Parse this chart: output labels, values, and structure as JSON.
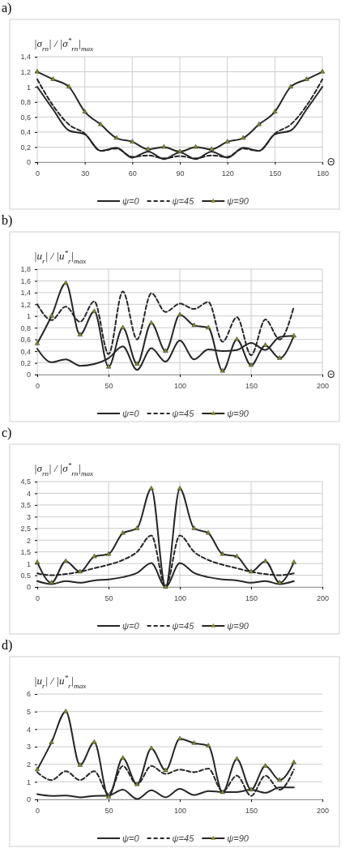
{
  "chart_data": [
    {
      "type": "line",
      "title": "a)",
      "xlabel": "Θ",
      "ylabel": "|σ$_{rn}$| / |σ$^{*}$$_{rn}$|$_{max}$",
      "x": [
        0,
        10,
        20,
        30,
        40,
        50,
        60,
        70,
        80,
        90,
        100,
        110,
        120,
        130,
        140,
        150,
        160,
        170,
        180
      ],
      "xlim": [
        0,
        180
      ],
      "xticks": [
        0,
        30,
        60,
        90,
        120,
        150,
        180
      ],
      "ylim": [
        0,
        1.4
      ],
      "yticks": [
        0,
        {
          "value": 0.2,
          "label": "0,2"
        },
        {
          "value": 0.4,
          "label": "0,4"
        },
        {
          "value": 0.6,
          "label": "0,6"
        },
        {
          "value": 0.8,
          "label": "0,8"
        },
        1,
        {
          "value": 1.2,
          "label": "1,2"
        },
        {
          "value": 1.4,
          "label": "1,4"
        }
      ],
      "grid": true,
      "legend": "bottom",
      "series": [
        {
          "name": "ψ=0",
          "color": "#262626",
          "line_style": "solid",
          "marker": "none",
          "values": [
            1.0,
            0.7,
            0.42,
            0.37,
            0.15,
            0.19,
            0.06,
            0.14,
            0.04,
            0.13,
            0.04,
            0.14,
            0.06,
            0.19,
            0.15,
            0.37,
            0.42,
            0.7,
            1.0
          ]
        },
        {
          "name": "ψ=45",
          "color": "#262626",
          "line_style": "dashed",
          "marker": "none",
          "values": [
            1.1,
            0.75,
            0.5,
            0.38,
            0.15,
            0.18,
            0.07,
            0.09,
            0.05,
            0.08,
            0.05,
            0.09,
            0.07,
            0.18,
            0.15,
            0.38,
            0.5,
            0.75,
            1.1
          ]
        },
        {
          "name": "ψ=90",
          "color": "#262626",
          "line_style": "solid",
          "marker": "triangle",
          "values": [
            1.2,
            1.1,
            1.0,
            0.67,
            0.5,
            0.32,
            0.27,
            0.17,
            0.2,
            0.14,
            0.2,
            0.17,
            0.27,
            0.32,
            0.5,
            0.67,
            1.0,
            1.1,
            1.2
          ]
        }
      ]
    },
    {
      "type": "line",
      "title": "b)",
      "xlabel": "Θ",
      "ylabel": "|u$_{r}$| / |u$^{*}$$_{r}$|$_{max}$",
      "x": [
        0,
        10,
        20,
        30,
        40,
        50,
        60,
        70,
        80,
        90,
        100,
        110,
        120,
        130,
        140,
        150,
        160,
        170,
        180
      ],
      "xlim": [
        0,
        200
      ],
      "xticks": [
        0,
        50,
        100,
        150,
        200
      ],
      "ylim": [
        0,
        1.8
      ],
      "yticks": [
        0,
        {
          "value": 0.2,
          "label": "0,2"
        },
        {
          "value": 0.4,
          "label": "0,4"
        },
        {
          "value": 0.6,
          "label": "0,6"
        },
        {
          "value": 0.8,
          "label": "0,8"
        },
        1,
        {
          "value": 1.2,
          "label": "1,2"
        },
        {
          "value": 1.4,
          "label": "1,4"
        },
        {
          "value": 1.6,
          "label": "1,6"
        },
        {
          "value": 1.8,
          "label": "1,8"
        }
      ],
      "grid": true,
      "legend": "bottom",
      "series": [
        {
          "name": "ψ=0",
          "color": "#262626",
          "line_style": "solid",
          "marker": "none",
          "values": [
            0.44,
            0.21,
            0.26,
            0.15,
            0.18,
            0.28,
            0.48,
            0.08,
            0.45,
            0.22,
            0.58,
            0.26,
            0.43,
            0.4,
            0.42,
            0.54,
            0.42,
            0.64,
            0.66
          ]
        },
        {
          "name": "ψ=45",
          "color": "#262626",
          "line_style": "dashed",
          "marker": "none",
          "values": [
            1.2,
            0.93,
            1.16,
            0.9,
            1.25,
            0.35,
            1.42,
            0.6,
            1.39,
            1.07,
            1.21,
            1.12,
            1.24,
            0.56,
            0.98,
            0.33,
            0.94,
            0.6,
            1.16
          ]
        },
        {
          "name": "ψ=90",
          "color": "#262626",
          "line_style": "solid",
          "marker": "triangle",
          "values": [
            0.53,
            1.0,
            1.56,
            0.68,
            1.08,
            0.13,
            0.8,
            0.18,
            0.88,
            0.4,
            1.02,
            0.84,
            0.8,
            0.06,
            0.6,
            0.16,
            0.5,
            0.28,
            0.66
          ]
        }
      ]
    },
    {
      "type": "line",
      "title": "c)",
      "ylabel": "|σ$_{rn}$| / |σ$^{*}$$_{rn}$|$_{max}$",
      "x": [
        0,
        10,
        20,
        30,
        40,
        50,
        60,
        70,
        80,
        90,
        100,
        110,
        120,
        130,
        140,
        150,
        160,
        170,
        180
      ],
      "xlim": [
        0,
        200
      ],
      "xticks": [
        0,
        50,
        100,
        150,
        200
      ],
      "ylim": [
        0,
        4.5
      ],
      "yticks": [
        0,
        {
          "value": 0.5,
          "label": "0,5"
        },
        1,
        {
          "value": 1.5,
          "label": "1,5"
        },
        2,
        {
          "value": 2.5,
          "label": "2,5"
        },
        3,
        {
          "value": 3.5,
          "label": "3,5"
        },
        4,
        {
          "value": 4.5,
          "label": "4,5"
        }
      ],
      "grid": true,
      "legend": "bottom",
      "series": [
        {
          "name": "ψ=0",
          "color": "#262626",
          "line_style": "solid",
          "marker": "none",
          "values": [
            0.25,
            0.12,
            0.25,
            0.18,
            0.28,
            0.32,
            0.42,
            0.6,
            1.02,
            0,
            1.02,
            0.6,
            0.42,
            0.32,
            0.28,
            0.18,
            0.25,
            0.12,
            0.25
          ]
        },
        {
          "name": "ψ=45",
          "color": "#262626",
          "line_style": "dashed",
          "marker": "none",
          "values": [
            0.58,
            0.5,
            0.55,
            0.65,
            0.8,
            0.95,
            1.15,
            1.5,
            2.2,
            0,
            2.2,
            1.5,
            1.15,
            0.95,
            0.8,
            0.65,
            0.55,
            0.5,
            0.58
          ]
        },
        {
          "name": "ψ=90",
          "color": "#262626",
          "line_style": "solid",
          "marker": "triangle",
          "values": [
            1.05,
            0.18,
            1.1,
            0.65,
            1.3,
            1.4,
            2.3,
            2.5,
            4.2,
            0,
            4.2,
            2.5,
            2.3,
            1.4,
            1.3,
            0.65,
            1.1,
            0.18,
            1.05
          ]
        }
      ]
    },
    {
      "type": "line",
      "title": "d)",
      "ylabel": "|u$_{r}$| / |u$^{*}$$_{r}$|$_{max}$",
      "x": [
        0,
        10,
        20,
        30,
        40,
        50,
        60,
        70,
        80,
        90,
        100,
        110,
        120,
        130,
        140,
        150,
        160,
        170,
        180
      ],
      "xlim": [
        0,
        200
      ],
      "xticks": [
        0,
        50,
        100,
        150,
        200
      ],
      "ylim": [
        0,
        6
      ],
      "yticks": [
        0,
        1,
        2,
        3,
        4,
        5,
        6
      ],
      "grid": "y",
      "legend": "bottom",
      "series": [
        {
          "name": "ψ=0",
          "color": "#262626",
          "line_style": "solid",
          "marker": "none",
          "values": [
            0.3,
            0.2,
            0.22,
            0.12,
            0.2,
            0.22,
            0.55,
            0.02,
            0.52,
            0.12,
            0.6,
            0.25,
            0.47,
            0.42,
            0.42,
            0.55,
            0.38,
            0.68,
            0.68
          ]
        },
        {
          "name": "ψ=45",
          "color": "#262626",
          "line_style": "dashed",
          "marker": "none",
          "values": [
            1.55,
            1.1,
            1.6,
            1.1,
            1.6,
            0.3,
            1.9,
            0.85,
            1.9,
            1.45,
            1.7,
            1.55,
            1.75,
            0.45,
            1.35,
            0.2,
            1.35,
            0.55,
            1.7
          ]
        },
        {
          "name": "ψ=90",
          "color": "#262626",
          "line_style": "solid",
          "marker": "triangle",
          "values": [
            1.7,
            3.25,
            5.0,
            1.95,
            3.25,
            0.15,
            2.35,
            0.85,
            2.9,
            1.65,
            3.45,
            3.2,
            3.05,
            0.4,
            2.3,
            0.55,
            1.9,
            1.1,
            2.1
          ]
        }
      ]
    }
  ]
}
